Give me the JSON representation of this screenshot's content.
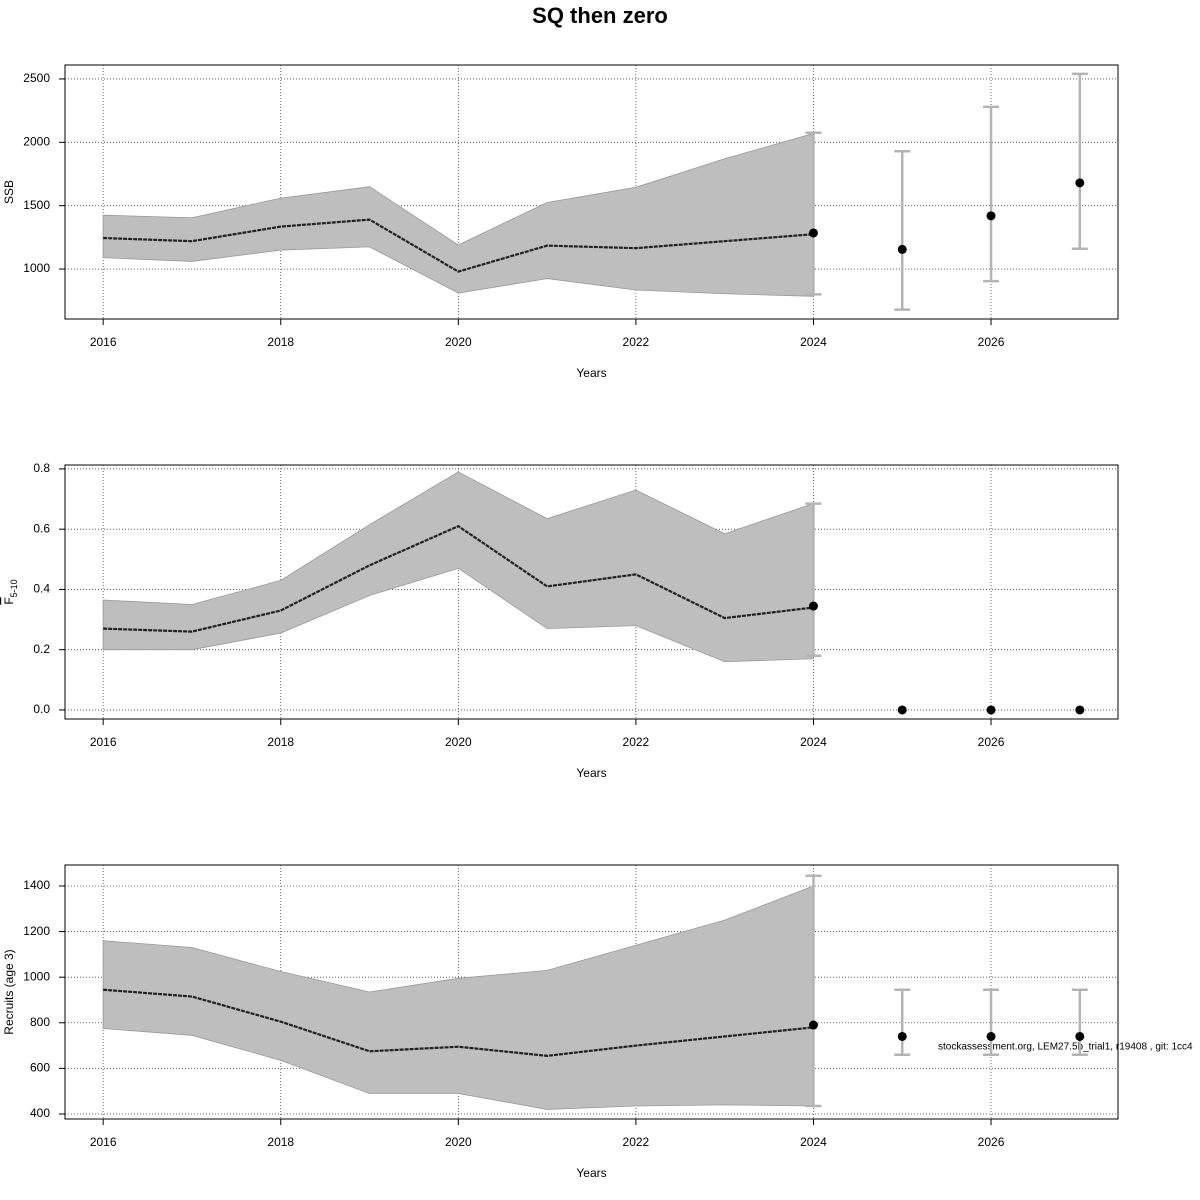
{
  "title": "SQ then zero",
  "annotation": "stockassessment.org, LEM27.5b_trial1, r19408 , git: 1cc4",
  "chart_data": [
    {
      "type": "line",
      "ylabel": "SSB",
      "xlabel": "Years",
      "x": [
        2016,
        2017,
        2018,
        2019,
        2020,
        2021,
        2022,
        2023,
        2024
      ],
      "values": [
        1245,
        1220,
        1335,
        1390,
        980,
        1185,
        1165,
        1220,
        1275
      ],
      "upper": [
        1425,
        1405,
        1560,
        1650,
        1190,
        1525,
        1645,
        1870,
        2070
      ],
      "lower": [
        1090,
        1060,
        1150,
        1175,
        810,
        925,
        835,
        805,
        785
      ],
      "forecast": {
        "x": [
          2024,
          2025,
          2026,
          2027
        ],
        "values": [
          1285,
          1155,
          1420,
          1680
        ],
        "lower": [
          800,
          680,
          905,
          1160
        ],
        "upper": [
          2075,
          1930,
          2280,
          2540
        ]
      },
      "color": "#222222",
      "band_color": "#bebebe",
      "errorbar_color": "#b4b4b4",
      "xlim": [
        2015.57,
        2027.43
      ],
      "ylim": [
        606,
        2610
      ],
      "xticks": [
        2016,
        2018,
        2020,
        2022,
        2024,
        2026
      ],
      "yticks": [
        1000,
        1500,
        2000,
        2500
      ],
      "grid": true
    },
    {
      "type": "line",
      "ylabel": "F",
      "ylabel_sub": "5-10",
      "xlabel": "Years",
      "x": [
        2016,
        2017,
        2018,
        2019,
        2020,
        2021,
        2022,
        2023,
        2024
      ],
      "values": [
        0.27,
        0.26,
        0.33,
        0.48,
        0.61,
        0.41,
        0.45,
        0.305,
        0.34
      ],
      "upper": [
        0.365,
        0.35,
        0.43,
        0.615,
        0.79,
        0.635,
        0.73,
        0.585,
        0.685
      ],
      "lower": [
        0.2,
        0.2,
        0.255,
        0.38,
        0.47,
        0.27,
        0.28,
        0.16,
        0.17
      ],
      "forecast": {
        "x": [
          2024,
          2025,
          2026,
          2027
        ],
        "values": [
          0.345,
          0,
          0,
          0
        ],
        "lower": [
          0.18,
          null,
          null,
          null
        ],
        "upper": [
          0.685,
          null,
          null,
          null
        ]
      },
      "color": "#222222",
      "band_color": "#bebebe",
      "errorbar_color": "#b4b4b4",
      "xlim": [
        2015.57,
        2027.43
      ],
      "ylim": [
        -0.03,
        0.813
      ],
      "xticks": [
        2016,
        2018,
        2020,
        2022,
        2024,
        2026
      ],
      "yticks": [
        {
          "value": 0,
          "label": "0.0"
        },
        0.2,
        0.4,
        0.6,
        0.8
      ],
      "grid": true
    },
    {
      "type": "line",
      "ylabel": "Recruits (age 3)",
      "xlabel": "Years",
      "x": [
        2016,
        2017,
        2018,
        2019,
        2020,
        2021,
        2022,
        2023,
        2024
      ],
      "values": [
        945,
        915,
        805,
        675,
        695,
        655,
        700,
        740,
        780
      ],
      "upper": [
        1160,
        1130,
        1025,
        935,
        995,
        1030,
        1140,
        1250,
        1400
      ],
      "lower": [
        775,
        745,
        635,
        490,
        490,
        420,
        435,
        440,
        435
      ],
      "forecast": {
        "x": [
          2024,
          2025,
          2026,
          2027
        ],
        "values": [
          790,
          740,
          740,
          740
        ],
        "lower": [
          435,
          660,
          660,
          660
        ],
        "upper": [
          1445,
          945,
          945,
          945
        ]
      },
      "color": "#222222",
      "band_color": "#bebebe",
      "errorbar_color": "#b4b4b4",
      "xlim": [
        2015.57,
        2027.43
      ],
      "ylim": [
        378,
        1492
      ],
      "xticks": [
        2016,
        2018,
        2020,
        2022,
        2024,
        2026
      ],
      "yticks": [
        400,
        600,
        800,
        1000,
        1200,
        1400
      ],
      "grid": true
    }
  ]
}
